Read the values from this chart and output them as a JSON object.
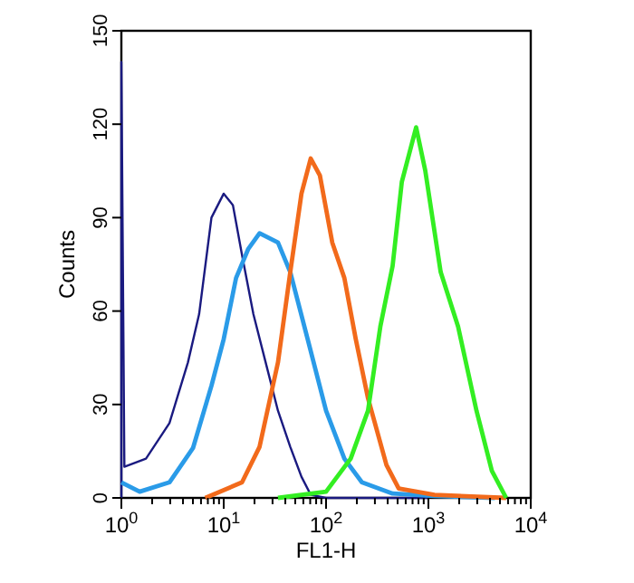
{
  "chart_data": {
    "type": "line",
    "xlabel": "FL1-H",
    "ylabel": "Counts",
    "log": "x",
    "xlim": [
      1,
      10000
    ],
    "ylim": [
      0,
      150
    ],
    "xticks": [
      {
        "value": 1,
        "label": "10$^{0}$"
      },
      {
        "value": 2,
        "label": null
      },
      {
        "value": 3,
        "label": null
      },
      {
        "value": 4,
        "label": null
      },
      {
        "value": 5,
        "label": null
      },
      {
        "value": 6,
        "label": null
      },
      {
        "value": 7,
        "label": null
      },
      {
        "value": 8,
        "label": null
      },
      {
        "value": 9,
        "label": null
      },
      {
        "value": 10,
        "label": "10$^{1}$"
      },
      {
        "value": 20,
        "label": null
      },
      {
        "value": 30,
        "label": null
      },
      {
        "value": 40,
        "label": null
      },
      {
        "value": 50,
        "label": null
      },
      {
        "value": 60,
        "label": null
      },
      {
        "value": 70,
        "label": null
      },
      {
        "value": 80,
        "label": null
      },
      {
        "value": 90,
        "label": null
      },
      {
        "value": 100,
        "label": "10$^{2}$"
      },
      {
        "value": 200,
        "label": null
      },
      {
        "value": 300,
        "label": null
      },
      {
        "value": 400,
        "label": null
      },
      {
        "value": 500,
        "label": null
      },
      {
        "value": 600,
        "label": null
      },
      {
        "value": 700,
        "label": null
      },
      {
        "value": 800,
        "label": null
      },
      {
        "value": 900,
        "label": null
      },
      {
        "value": 1000,
        "label": "10$^{3}$"
      },
      {
        "value": 2000,
        "label": null
      },
      {
        "value": 3000,
        "label": null
      },
      {
        "value": 4000,
        "label": null
      },
      {
        "value": 5000,
        "label": null
      },
      {
        "value": 6000,
        "label": null
      },
      {
        "value": 7000,
        "label": null
      },
      {
        "value": 8000,
        "label": null
      },
      {
        "value": 9000,
        "label": null
      },
      {
        "value": 10000,
        "label": "10$^{4}$"
      }
    ],
    "yticks": [
      0,
      30,
      60,
      90,
      120,
      150
    ],
    "grid": false,
    "line_style": "solid",
    "series": [
      {
        "color": "#1a1a80",
        "x": [
          1,
          1,
          1.07,
          1.74,
          2.95,
          4.47,
          5.75,
          7.59,
          10,
          12.3,
          15.1,
          19.5,
          25.7,
          33.9,
          44.7,
          57.5,
          70.8,
          100,
          1000
        ],
        "values": [
          0,
          140,
          10,
          12.6,
          24,
          43.5,
          59,
          90,
          97.7,
          94,
          78,
          59,
          43.5,
          28,
          16.4,
          6.8,
          1,
          0,
          0
        ]
      },
      {
        "color": "#2a9be8",
        "x": [
          1,
          1.51,
          2.95,
          5.01,
          7.59,
          10,
          13.2,
          17.4,
          22.4,
          33.9,
          44.7,
          66.1,
          100,
          151,
          224,
          447,
          1148,
          4467
        ],
        "values": [
          5,
          2,
          5,
          16,
          36,
          51,
          70.6,
          80,
          85,
          82,
          72.5,
          51,
          28,
          12.6,
          5,
          1.4,
          0.6,
          0
        ]
      },
      {
        "color": "#f26a1b",
        "x": [
          6.61,
          15.1,
          22.4,
          33.9,
          44.7,
          57.5,
          70.8,
          87.1,
          115,
          151,
          195,
          257,
          389,
          513,
          1148,
          5754
        ],
        "values": [
          0,
          5,
          16.4,
          43.5,
          72.5,
          97.7,
          109,
          103.5,
          82,
          70.6,
          51,
          32,
          10.6,
          3,
          1,
          0
        ]
      },
      {
        "color": "#33ee22",
        "x": [
          33.9,
          100,
          174,
          257,
          339,
          447,
          550,
          759,
          933,
          1318,
          1950,
          2951,
          4169,
          5754
        ],
        "values": [
          0,
          2,
          12.6,
          28,
          55,
          74.5,
          101.5,
          119,
          105,
          72.5,
          55,
          28,
          8.7,
          0
        ]
      }
    ]
  }
}
